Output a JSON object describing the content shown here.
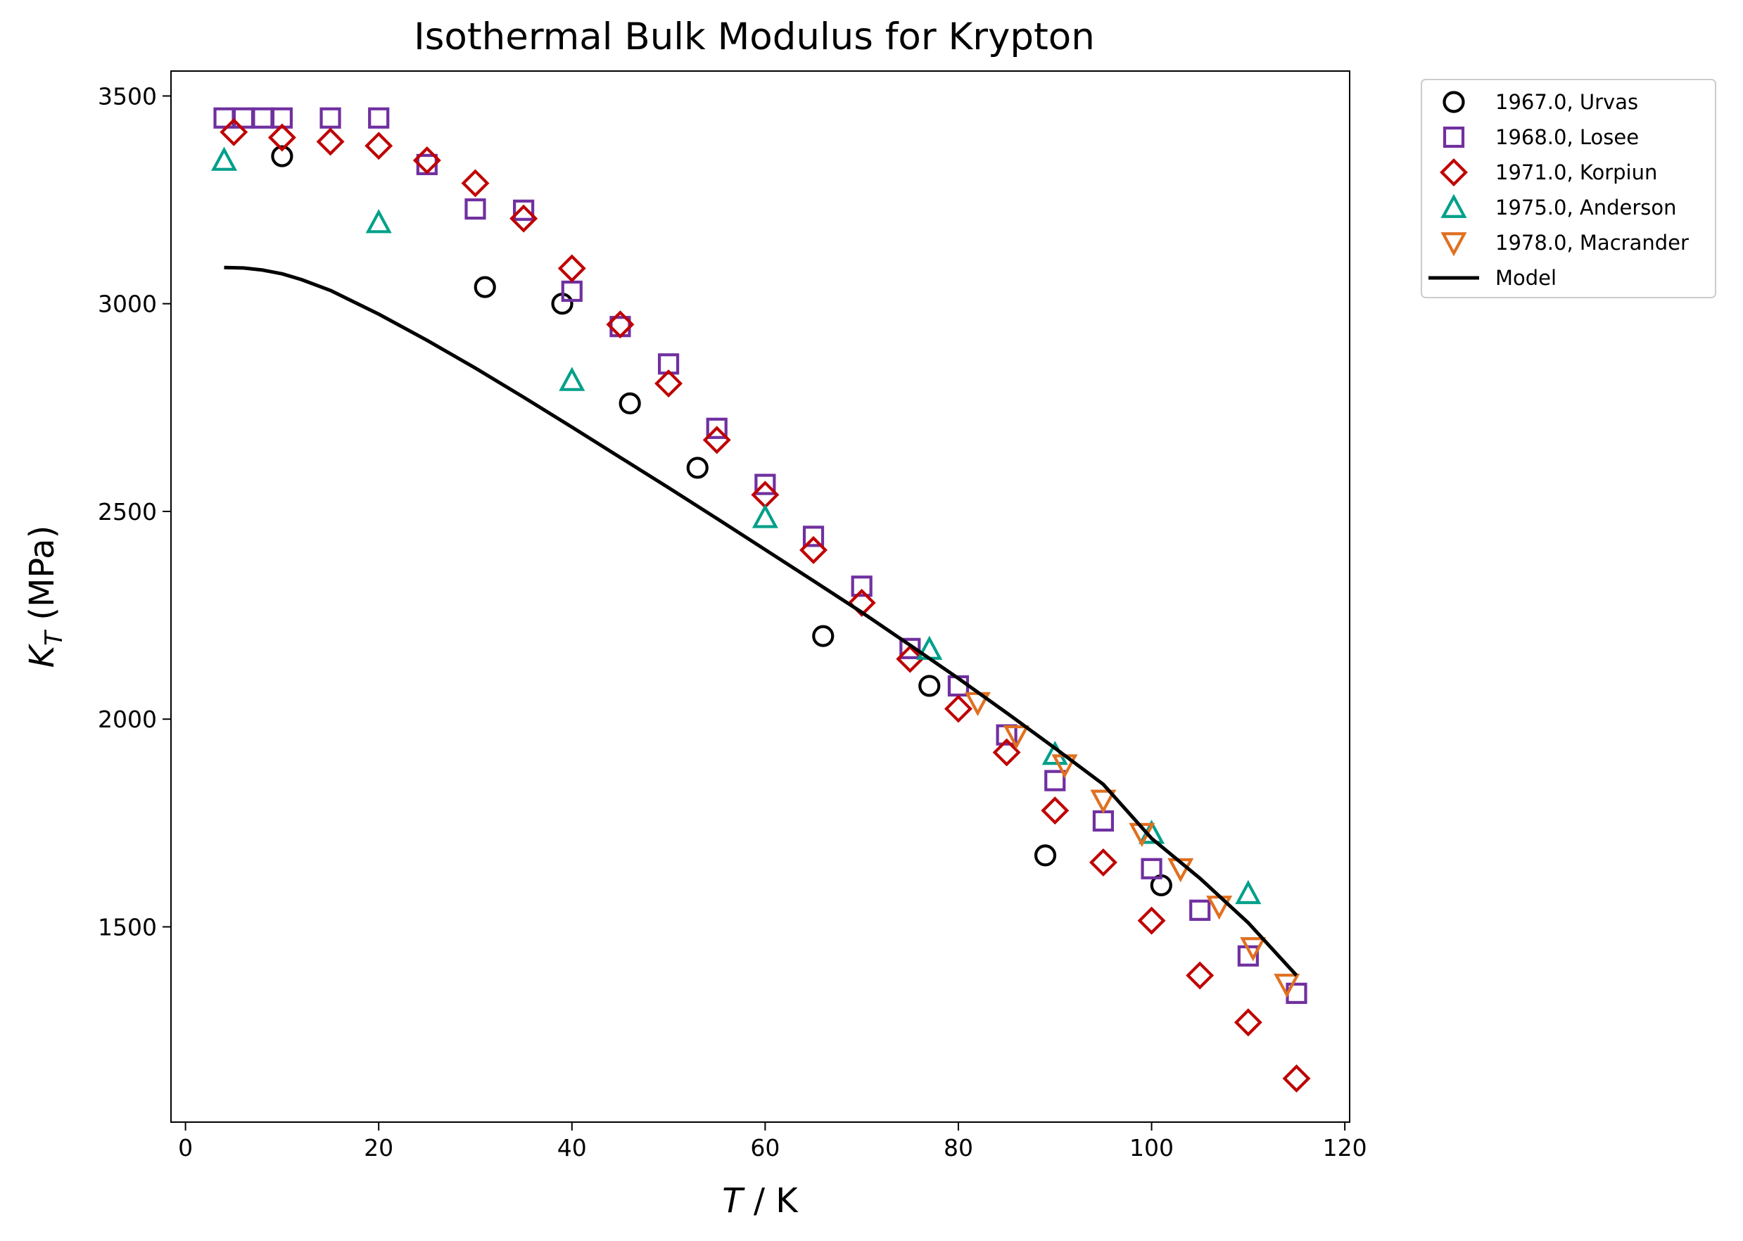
{
  "chart_data": {
    "type": "scatter",
    "title": "Isothermal Bulk Modulus for Krypton",
    "xlabel": "T / K",
    "xlabel_parts": {
      "symbol": "T",
      "rest": " / K"
    },
    "ylabel": "K_T (MPa)",
    "ylabel_parts": {
      "symbol": "K",
      "subscript": "T",
      "rest": " (MPa)"
    },
    "xlim": [
      -1.5,
      120.5
    ],
    "ylim": [
      1030,
      3560
    ],
    "xticks": [
      0,
      20,
      40,
      60,
      80,
      100,
      120
    ],
    "yticks": [
      1500,
      2000,
      2500,
      3000,
      3500
    ],
    "grid": false,
    "legend_position": "outside-top-right",
    "series": [
      {
        "name": "1967.0, Urvas",
        "marker": "circle",
        "color": "#000000",
        "points": [
          [
            10,
            3355
          ],
          [
            31,
            3040
          ],
          [
            39,
            3000
          ],
          [
            46,
            2760
          ],
          [
            53,
            2605
          ],
          [
            66,
            2200
          ],
          [
            77,
            2080
          ],
          [
            89,
            1672
          ],
          [
            101,
            1600
          ]
        ]
      },
      {
        "name": "1968.0, Losee",
        "marker": "square",
        "color": "#7030a0",
        "points": [
          [
            4,
            3447
          ],
          [
            6,
            3447
          ],
          [
            8,
            3447
          ],
          [
            10,
            3447
          ],
          [
            15,
            3447
          ],
          [
            20,
            3447
          ],
          [
            25,
            3335
          ],
          [
            30,
            3228
          ],
          [
            35,
            3225
          ],
          [
            40,
            3030
          ],
          [
            45,
            2945
          ],
          [
            50,
            2855
          ],
          [
            55,
            2700
          ],
          [
            60,
            2565
          ],
          [
            65,
            2440
          ],
          [
            70,
            2320
          ],
          [
            75,
            2170
          ],
          [
            80,
            2080
          ],
          [
            85,
            1962
          ],
          [
            90,
            1852
          ],
          [
            95,
            1755
          ],
          [
            100,
            1640
          ],
          [
            105,
            1540
          ],
          [
            110,
            1430
          ],
          [
            115,
            1340
          ]
        ]
      },
      {
        "name": "1971.0, Korpiun",
        "marker": "diamond",
        "color": "#c00000",
        "points": [
          [
            5,
            3413
          ],
          [
            10,
            3400
          ],
          [
            15,
            3390
          ],
          [
            20,
            3380
          ],
          [
            25,
            3345
          ],
          [
            30,
            3290
          ],
          [
            35,
            3205
          ],
          [
            40,
            3085
          ],
          [
            45,
            2950
          ],
          [
            50,
            2808
          ],
          [
            55,
            2672
          ],
          [
            60,
            2540
          ],
          [
            65,
            2407
          ],
          [
            70,
            2280
          ],
          [
            75,
            2145
          ],
          [
            80,
            2025
          ],
          [
            85,
            1920
          ],
          [
            90,
            1780
          ],
          [
            95,
            1655
          ],
          [
            100,
            1515
          ],
          [
            105,
            1383
          ],
          [
            110,
            1270
          ],
          [
            115,
            1135
          ]
        ]
      },
      {
        "name": "1975.0, Anderson",
        "marker": "triangle-up",
        "color": "#00a08a",
        "points": [
          [
            4,
            3345
          ],
          [
            20,
            3195
          ],
          [
            40,
            2815
          ],
          [
            60,
            2485
          ],
          [
            77,
            2168
          ],
          [
            90,
            1915
          ],
          [
            100,
            1725
          ],
          [
            110,
            1580
          ]
        ]
      },
      {
        "name": "1978.0, Macrander",
        "marker": "triangle-down",
        "color": "#e07020",
        "points": [
          [
            82,
            2040
          ],
          [
            86,
            1960
          ],
          [
            91,
            1890
          ],
          [
            95,
            1805
          ],
          [
            99,
            1725
          ],
          [
            103,
            1640
          ],
          [
            107,
            1550
          ],
          [
            110.5,
            1450
          ],
          [
            114,
            1362
          ]
        ]
      },
      {
        "name": "Model",
        "marker": "line",
        "color": "#000000",
        "points": [
          [
            4,
            3087
          ],
          [
            6,
            3086
          ],
          [
            8,
            3081
          ],
          [
            10,
            3072
          ],
          [
            12,
            3058
          ],
          [
            15,
            3032
          ],
          [
            20,
            2975
          ],
          [
            25,
            2912
          ],
          [
            30,
            2845
          ],
          [
            35,
            2775
          ],
          [
            40,
            2703
          ],
          [
            45,
            2630
          ],
          [
            50,
            2557
          ],
          [
            55,
            2483
          ],
          [
            60,
            2408
          ],
          [
            65,
            2333
          ],
          [
            70,
            2257
          ],
          [
            75,
            2178
          ],
          [
            80,
            2098
          ],
          [
            85,
            2015
          ],
          [
            90,
            1930
          ],
          [
            95,
            1843
          ],
          [
            100,
            1713
          ],
          [
            105,
            1617
          ],
          [
            110,
            1510
          ],
          [
            115,
            1383
          ]
        ]
      }
    ]
  }
}
